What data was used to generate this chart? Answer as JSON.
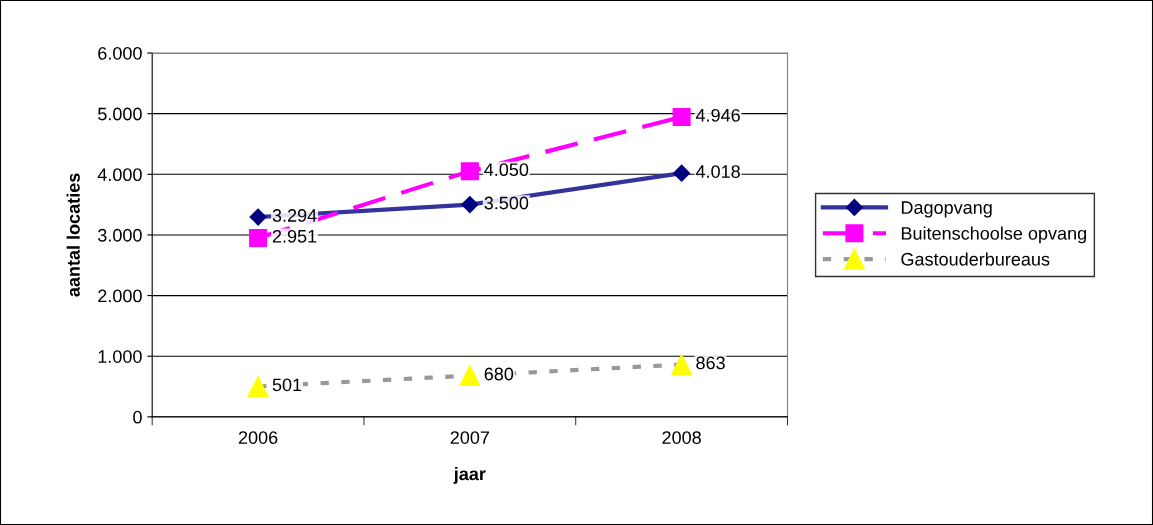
{
  "chart_data": {
    "type": "line",
    "xlabel": "jaar",
    "ylabel": "aantal locaties",
    "categories": [
      "2006",
      "2007",
      "2008"
    ],
    "series": [
      {
        "name": "Dagopvang",
        "color": "#333399",
        "marker": "diamond",
        "line_style": "solid",
        "values": [
          3294,
          3500,
          4018
        ],
        "value_labels": [
          "3.294",
          "3.500",
          "4.018"
        ]
      },
      {
        "name": "Buitenschoolse opvang",
        "color": "#ff00ff",
        "marker": "square",
        "line_style": "dashed",
        "values": [
          2951,
          4050,
          4946
        ],
        "value_labels": [
          "2.951",
          "4.050",
          "4.946"
        ]
      },
      {
        "name": "Gastouderbureaus",
        "color": "#999999",
        "marker": "triangle",
        "line_style": "dotted",
        "values": [
          501,
          680,
          863
        ],
        "value_labels": [
          "501",
          "680",
          "863"
        ]
      }
    ],
    "ylim": [
      0,
      6000
    ],
    "yticks": [
      {
        "value": 0,
        "label": "0"
      },
      {
        "value": 1000,
        "label": "1.000"
      },
      {
        "value": 2000,
        "label": "2.000"
      },
      {
        "value": 3000,
        "label": "3.000"
      },
      {
        "value": 4000,
        "label": "4.000"
      },
      {
        "value": 5000,
        "label": "5.000"
      },
      {
        "value": 6000,
        "label": "6.000"
      }
    ],
    "grid": "y",
    "legend": "right"
  }
}
